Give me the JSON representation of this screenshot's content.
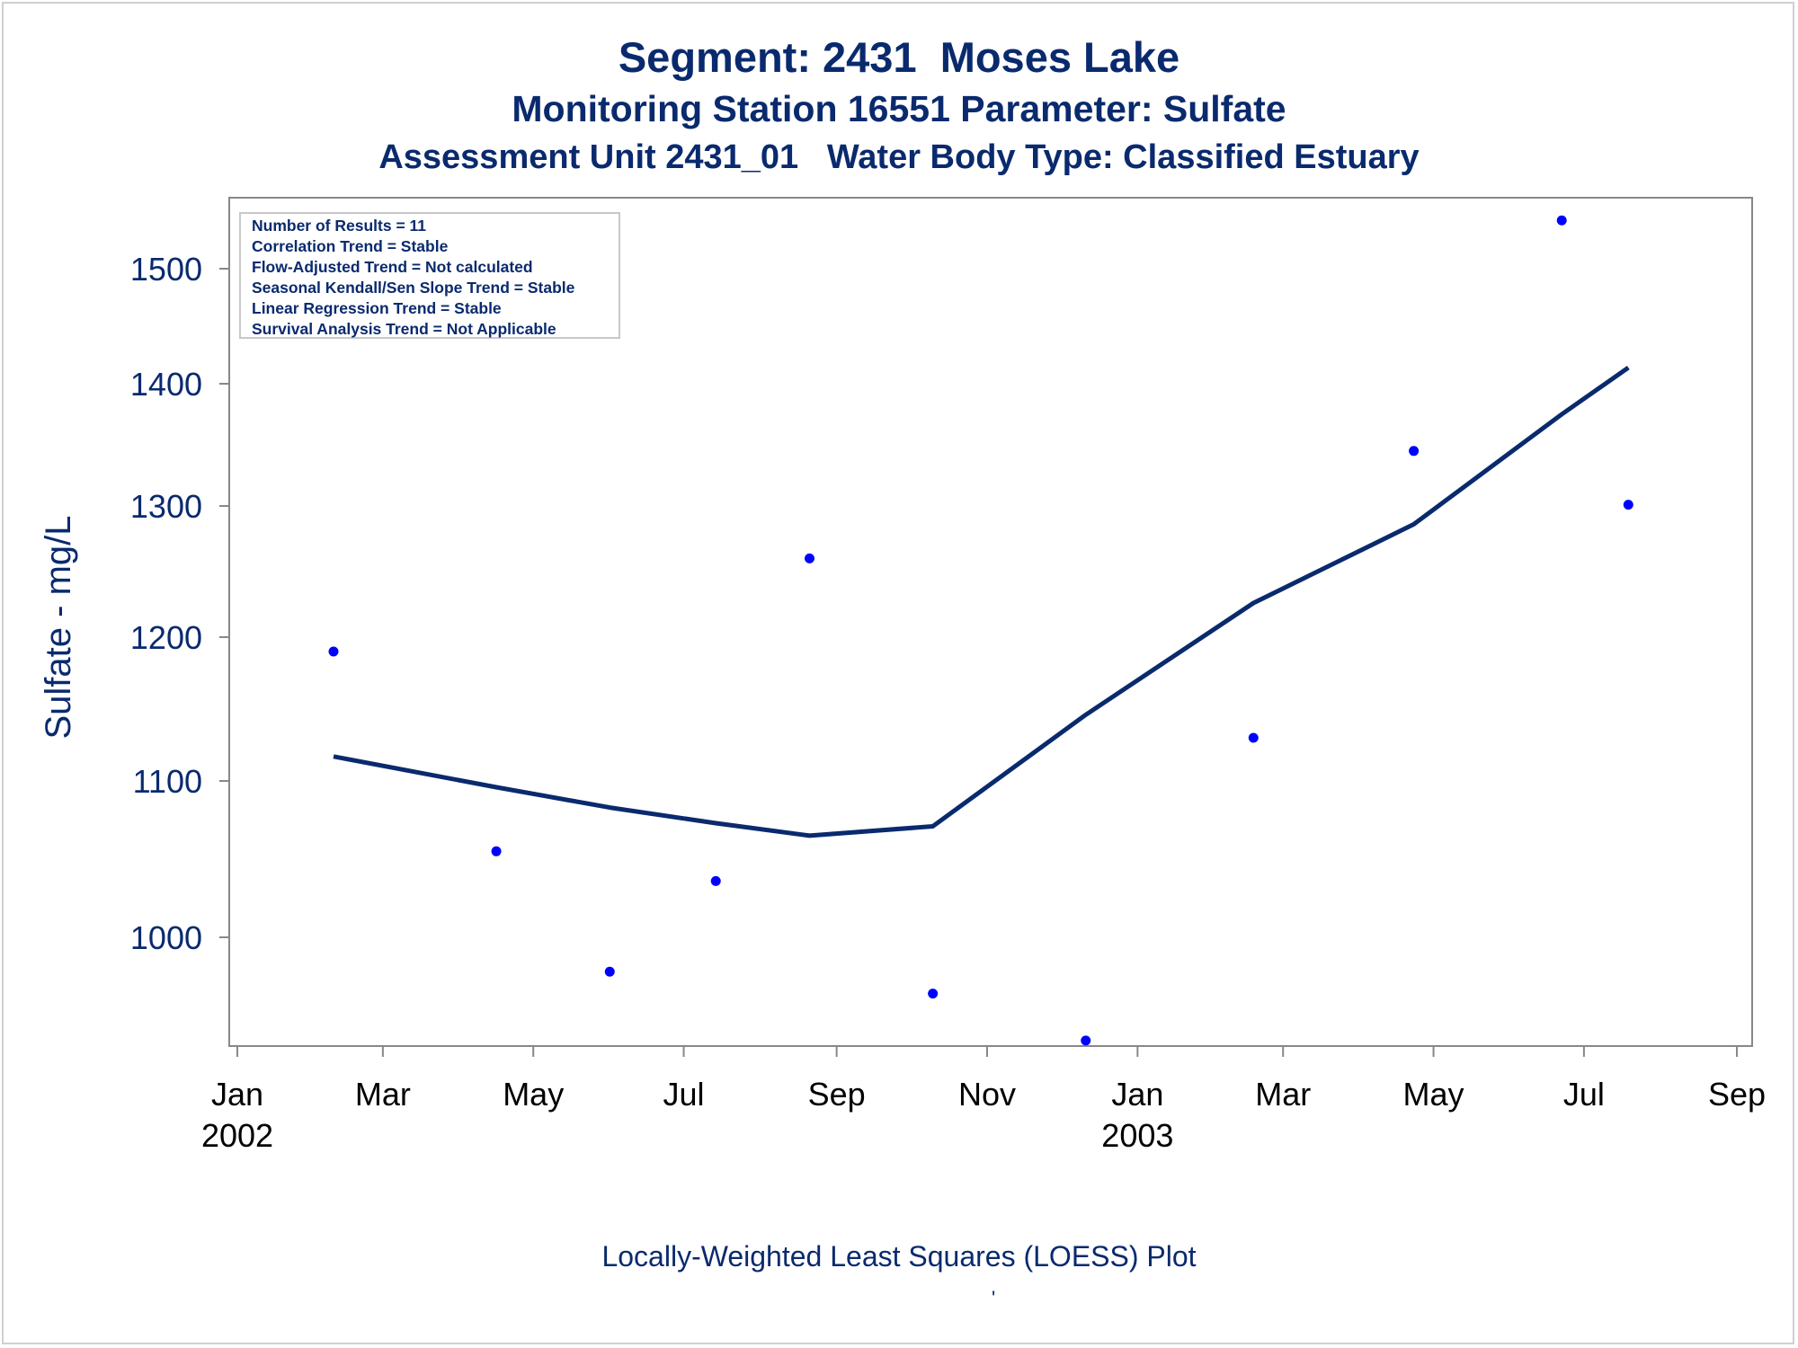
{
  "header": {
    "title_line1": "Segment: 2431  Moses Lake",
    "title_line2": "Monitoring Station 16551 Parameter: Sulfate",
    "title_line3": "Assessment Unit 2431_01   Water Body Type: Classified Estuary"
  },
  "stats": [
    "Number of Results = 11",
    "Correlation Trend = Stable",
    "Flow-Adjusted Trend = Not calculated",
    "Seasonal Kendall/Sen Slope Trend = Stable",
    "Linear Regression Trend = Stable",
    "Survival Analysis Trend = Not Applicable"
  ],
  "footer": {
    "caption": "Locally-Weighted Least Squares (LOESS) Plot",
    "mark": "'"
  },
  "colors": {
    "text": "#0a2a6e",
    "points": "#0000ff",
    "loess": "#0a2a6e",
    "axis": "#888888"
  },
  "chart_data": {
    "type": "scatter",
    "ylabel": "Sulfate - mg/L",
    "xlabel": "",
    "ylim": [
      930,
      1550
    ],
    "xlim": [
      "2002-01-01",
      "2003-09-01"
    ],
    "y_ticks": [
      1000,
      1100,
      1200,
      1300,
      1400,
      1500
    ],
    "x_ticks": [
      {
        "date": "2002-01-01",
        "label": "Jan",
        "year": "2002"
      },
      {
        "date": "2002-03-01",
        "label": "Mar",
        "year": ""
      },
      {
        "date": "2002-05-01",
        "label": "May",
        "year": ""
      },
      {
        "date": "2002-07-01",
        "label": "Jul",
        "year": ""
      },
      {
        "date": "2002-09-01",
        "label": "Sep",
        "year": ""
      },
      {
        "date": "2002-11-01",
        "label": "Nov",
        "year": ""
      },
      {
        "date": "2003-01-01",
        "label": "Jan",
        "year": "2003"
      },
      {
        "date": "2003-03-01",
        "label": "Mar",
        "year": ""
      },
      {
        "date": "2003-05-01",
        "label": "May",
        "year": ""
      },
      {
        "date": "2003-07-01",
        "label": "Jul",
        "year": ""
      },
      {
        "date": "2003-09-01",
        "label": "Sep",
        "year": ""
      }
    ],
    "series": [
      {
        "type": "scatter",
        "points": [
          {
            "x": "2002-02-09",
            "y": 1190
          },
          {
            "x": "2002-04-16",
            "y": 1055
          },
          {
            "x": "2002-06-01",
            "y": 978
          },
          {
            "x": "2002-07-14",
            "y": 1036
          },
          {
            "x": "2002-08-21",
            "y": 1260
          },
          {
            "x": "2002-10-10",
            "y": 964
          },
          {
            "x": "2002-12-11",
            "y": 934
          },
          {
            "x": "2003-02-17",
            "y": 1130
          },
          {
            "x": "2003-04-23",
            "y": 1345
          },
          {
            "x": "2003-06-22",
            "y": 1542
          },
          {
            "x": "2003-07-19",
            "y": 1301
          }
        ]
      },
      {
        "type": "line",
        "points": [
          {
            "x": "2002-02-09",
            "y": 1117
          },
          {
            "x": "2002-04-16",
            "y": 1096
          },
          {
            "x": "2002-06-01",
            "y": 1083
          },
          {
            "x": "2002-07-14",
            "y": 1073
          },
          {
            "x": "2002-08-21",
            "y": 1065
          },
          {
            "x": "2002-10-10",
            "y": 1071
          },
          {
            "x": "2002-12-11",
            "y": 1146
          },
          {
            "x": "2003-02-17",
            "y": 1226
          },
          {
            "x": "2003-04-23",
            "y": 1286
          },
          {
            "x": "2003-06-22",
            "y": 1375
          },
          {
            "x": "2003-07-19",
            "y": 1414
          }
        ]
      }
    ]
  }
}
